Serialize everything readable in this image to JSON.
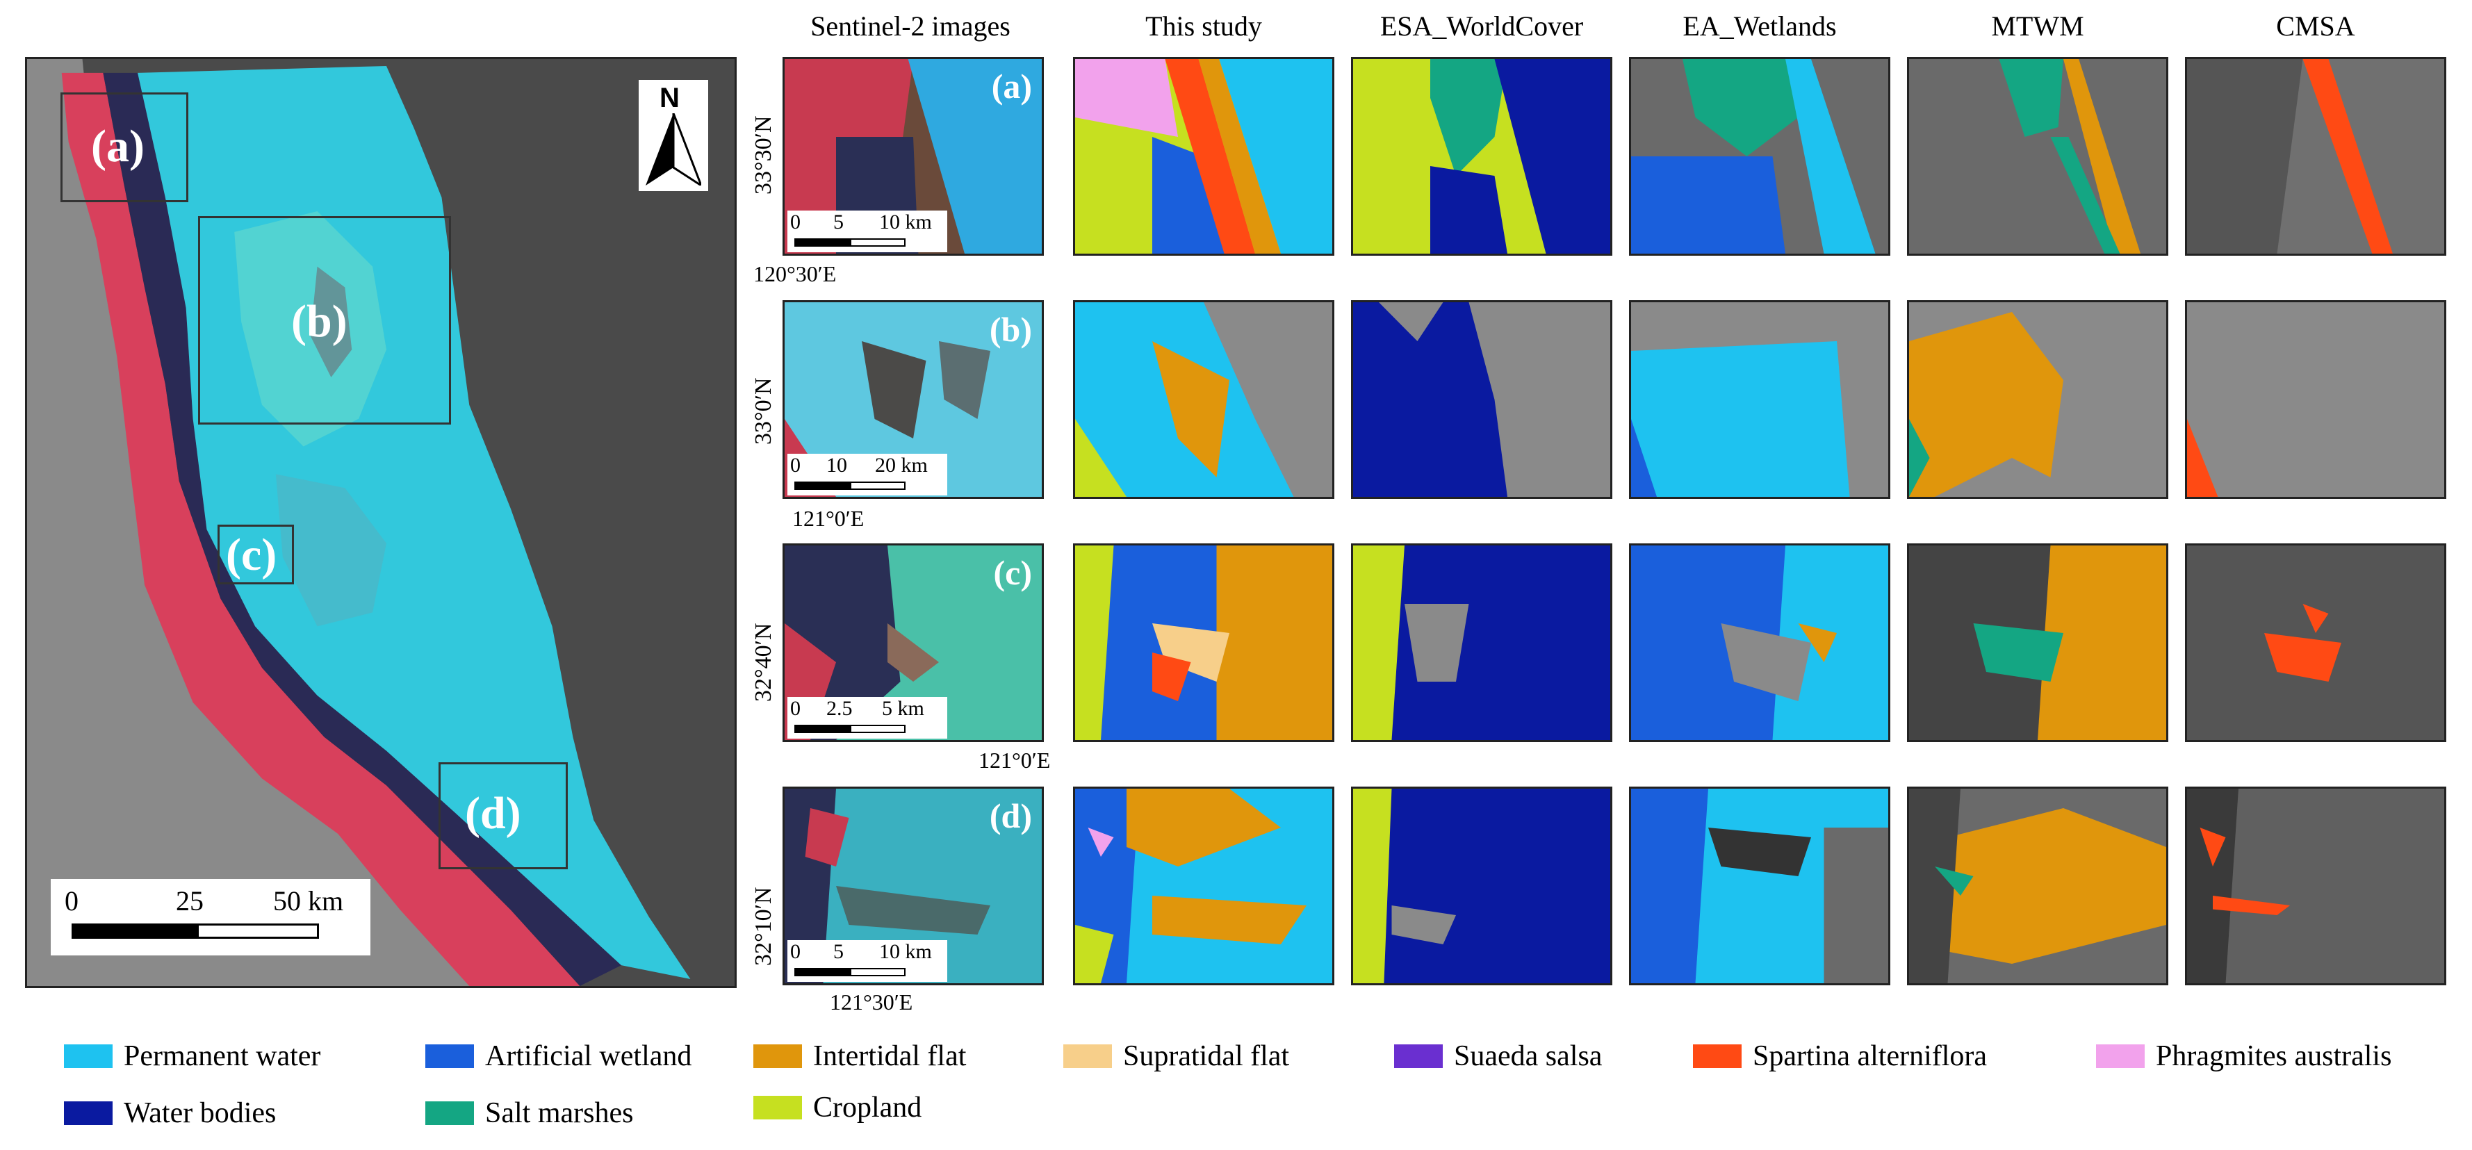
{
  "columns": [
    "Sentinel-2 images",
    "This study",
    "ESA_WorldCover",
    "EA_Wetlands",
    "MTWM",
    "CMSA"
  ],
  "rows": [
    {
      "letter": "(a)",
      "lat": "33°30′N",
      "lon": "120°30′E",
      "scale": {
        "t0": "0",
        "t1": "5",
        "t2": "10 km"
      }
    },
    {
      "letter": "(b)",
      "lat": "33°0′N",
      "lon": "121°0′E",
      "scale": {
        "t0": "0",
        "t1": "10",
        "t2": "20 km"
      }
    },
    {
      "letter": "(c)",
      "lat": "32°40′N",
      "lon": "121°0′E",
      "scale": {
        "t0": "0",
        "t1": "2.5",
        "t2": "5 km"
      }
    },
    {
      "letter": "(d)",
      "lat": "32°10′N",
      "lon": "121°30′E",
      "scale": {
        "t0": "0",
        "t1": "5",
        "t2": "10 km"
      }
    }
  ],
  "overview": {
    "north": "N",
    "regions": [
      "(a)",
      "(b)",
      "(c)",
      "(d)"
    ],
    "scale": {
      "t0": "0",
      "t1": "25",
      "t2": "50 km"
    }
  },
  "legend": [
    {
      "label": "Permanent water",
      "color": "#1ec2f0"
    },
    {
      "label": "Artificial wetland",
      "color": "#1a5fdc"
    },
    {
      "label": "Intertidal flat",
      "color": "#e0960c"
    },
    {
      "label": "Supratidal flat",
      "color": "#f7cf8a"
    },
    {
      "label": "Suaeda salsa",
      "color": "#6a2fd0"
    },
    {
      "label": "Spartina alterniflora",
      "color": "#ff4a14"
    },
    {
      "label": "Phragmites australis",
      "color": "#f2a2ec"
    },
    {
      "label": "Water bodies",
      "color": "#0a1aa0"
    },
    {
      "label": "Salt marshes",
      "color": "#14a683"
    },
    {
      "label": "Cropland",
      "color": "#c6e020"
    }
  ]
}
